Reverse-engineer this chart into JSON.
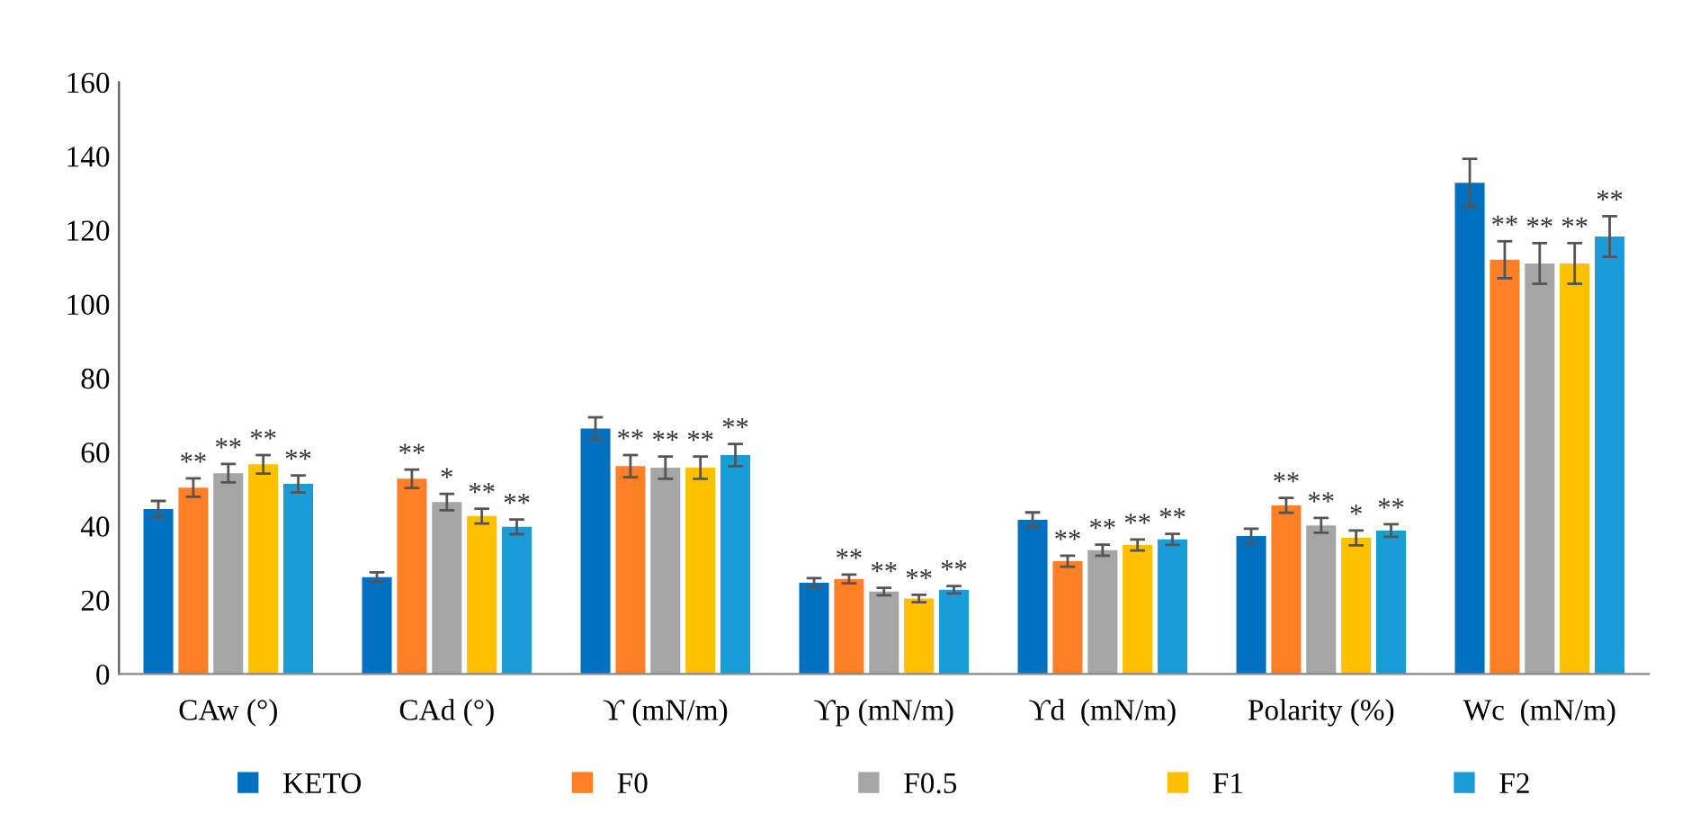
{
  "chart_data": {
    "type": "bar",
    "categories": [
      "CAw (°)",
      "CAd (°)",
      "ϒ (mN/m)",
      "ϒp (mN/m)",
      "ϒd  (mN/m)",
      "Polarity (%)",
      "Wc  (mN/m)"
    ],
    "series": [
      {
        "name": "KETO",
        "color": "#0070c0",
        "values": [
          44.6,
          26.2,
          66.4,
          24.7,
          41.7,
          37.3,
          132.8
        ],
        "errors": [
          2.2,
          1.3,
          3,
          1.2,
          2,
          2,
          6.5
        ],
        "value_labels": [
          null,
          null,
          null,
          null,
          null,
          null,
          null
        ]
      },
      {
        "name": "F0",
        "color": "#ff7f27",
        "values": [
          50.4,
          52.8,
          56.2,
          25.7,
          30.5,
          45.6,
          112
        ],
        "errors": [
          2.5,
          2.5,
          3,
          1.2,
          1.5,
          2,
          5
        ],
        "value_labels": [
          "**",
          "**",
          "**",
          "**",
          "**",
          "**",
          "**"
        ]
      },
      {
        "name": "F0.5",
        "color": "#a5a5a5",
        "values": [
          54.3,
          46.5,
          55.8,
          22.3,
          33.5,
          40.2,
          111
        ],
        "errors": [
          2.5,
          2.2,
          3,
          1,
          1.5,
          2,
          5.5
        ],
        "value_labels": [
          "**",
          "*",
          "**",
          "**",
          "**",
          "**",
          "**"
        ]
      },
      {
        "name": "F1",
        "color": "#ffc000",
        "values": [
          56.7,
          42.7,
          55.8,
          20.4,
          34.9,
          36.8,
          111
        ],
        "errors": [
          2.5,
          2,
          3,
          1,
          1.5,
          2,
          5.5
        ],
        "value_labels": [
          "**",
          "**",
          "**",
          "**",
          "**",
          "*",
          "**"
        ]
      },
      {
        "name": "F2",
        "color": "#1a9cd8",
        "values": [
          51.4,
          39.8,
          59.2,
          22.8,
          36.4,
          38.8,
          118.3
        ],
        "errors": [
          2.3,
          2,
          3,
          1,
          1.5,
          1.7,
          5.5
        ],
        "value_labels": [
          "**",
          "**",
          "**",
          "**",
          "**",
          "**",
          "**"
        ]
      }
    ],
    "ylim": [
      0,
      160
    ],
    "yticks": [
      0,
      20,
      40,
      60,
      80,
      100,
      120,
      140,
      160
    ],
    "grid": false,
    "legend": "bottom"
  }
}
